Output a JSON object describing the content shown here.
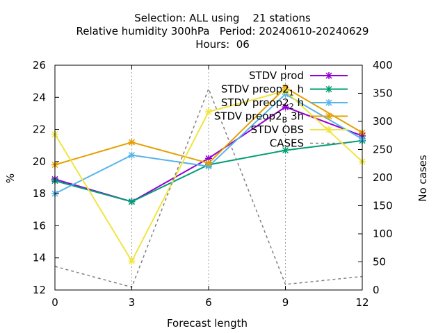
{
  "chart_data": {
    "type": "line",
    "title_lines": [
      "Selection: ALL using    21 stations",
      "Relative humidity 300hPa   Period: 20240610-20240629",
      "Hours:  06"
    ],
    "xlabel": "Forecast length",
    "ylabel": "%",
    "y2label": "No cases",
    "x": [
      0,
      3,
      6,
      9,
      12
    ],
    "xlim": [
      0,
      12
    ],
    "ylim": [
      12,
      26
    ],
    "y2lim": [
      0,
      400
    ],
    "xticks": [
      "0",
      "3",
      "6",
      "9",
      "12"
    ],
    "yticks": [
      "12",
      "14",
      "16",
      "18",
      "20",
      "22",
      "24",
      "26"
    ],
    "y2ticks": [
      "0",
      "50",
      "100",
      "150",
      "200",
      "250",
      "300",
      "350",
      "400"
    ],
    "grid": "vertical dashed at x ticks",
    "legend_position": "top-right",
    "series": [
      {
        "name": "STDV prod",
        "color": "#9400d3",
        "marker": "x-star",
        "axis": "left",
        "values": [
          18.9,
          17.5,
          20.2,
          23.4,
          21.6
        ]
      },
      {
        "name": "STDV preop2_1 h",
        "legend_label": "STDV preop2",
        "legend_sub": "1",
        "legend_tail": "h",
        "color": "#009e73",
        "marker": "x-star",
        "axis": "left",
        "values": [
          18.8,
          17.5,
          19.8,
          20.7,
          21.3
        ]
      },
      {
        "name": "STDV preop2_2 h",
        "legend_label": "STDV preop2",
        "legend_sub": "2",
        "legend_tail": "h",
        "color": "#56b4e9",
        "marker": "x-star",
        "axis": "left",
        "values": [
          18.0,
          20.4,
          19.7,
          24.2,
          21.4
        ]
      },
      {
        "name": "STDV preop2_B 3h",
        "legend_label": "STDV preop2",
        "legend_sub": "B",
        "legend_tail": "3h",
        "color": "#e69f00",
        "marker": "x-star",
        "axis": "left",
        "values": [
          19.8,
          21.2,
          19.9,
          24.6,
          21.8
        ]
      },
      {
        "name": "STDV OBS",
        "color": "#f0e442",
        "marker": "x-star",
        "axis": "left",
        "values": [
          21.7,
          13.8,
          23.1,
          24.4,
          20.0
        ]
      },
      {
        "name": "CASES",
        "color": "#808080",
        "marker": "none",
        "dash": "dashed",
        "axis": "right",
        "values": [
          42,
          5,
          358,
          10,
          24
        ]
      }
    ]
  }
}
